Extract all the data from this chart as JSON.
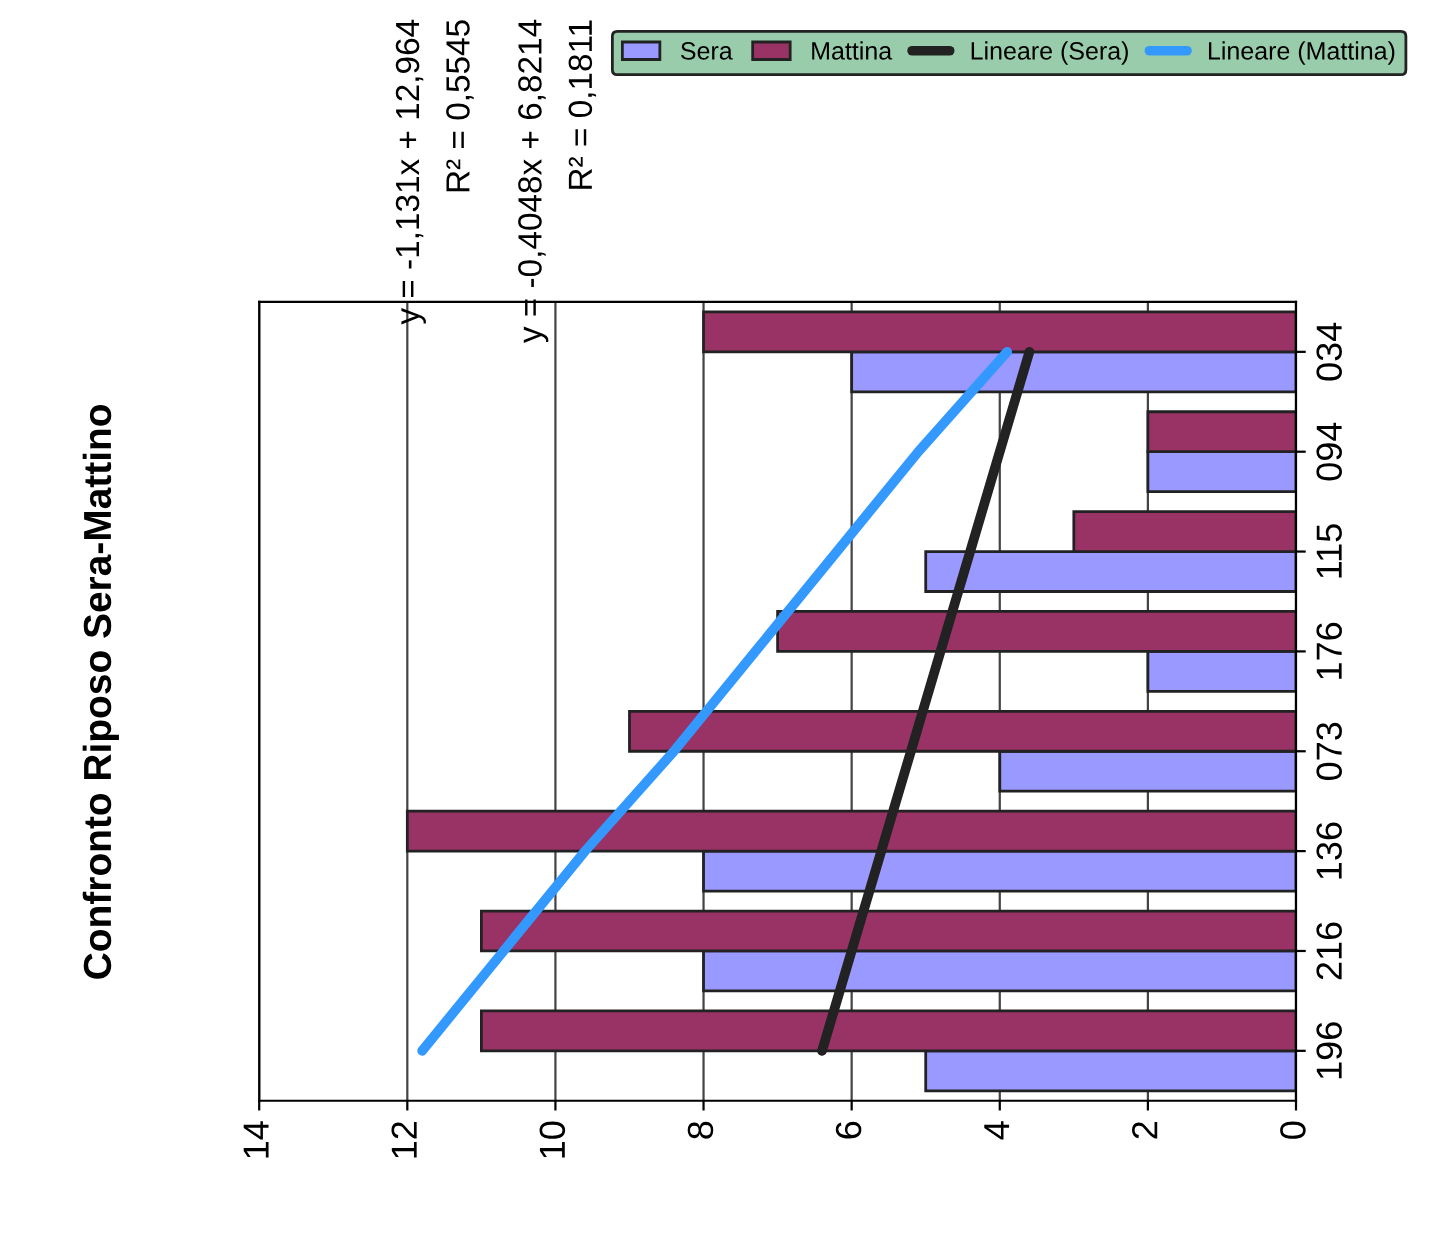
{
  "chart_data": {
    "type": "bar",
    "orientation": "horizontal",
    "title": "Confronto Riposo Sera-Mattino",
    "categories": [
      "034",
      "094",
      "115",
      "176",
      "073",
      "136",
      "216",
      "196"
    ],
    "series": [
      {
        "name": "Sera",
        "color": "#9999ff",
        "values": [
          6,
          2,
          5,
          2,
          4,
          8,
          8,
          5
        ]
      },
      {
        "name": "Mattina",
        "color": "#993366",
        "values": [
          8,
          2,
          3,
          7,
          9,
          12,
          11,
          11
        ]
      },
      {
        "name": "Lineare (Sera)",
        "type": "line",
        "color": "#222222",
        "values": [
          3.6,
          4.0,
          4.4,
          4.8,
          5.2,
          5.6,
          6.0,
          6.4
        ]
      },
      {
        "name": "Lineare (Mattina)",
        "type": "line",
        "color": "#3399ff",
        "values": [
          3.9,
          5.1,
          6.2,
          7.3,
          8.4,
          9.6,
          10.7,
          11.8
        ]
      }
    ],
    "xlim": [
      14,
      0
    ],
    "xticks": [
      0,
      2,
      4,
      6,
      8,
      10,
      12,
      14
    ],
    "grid": "x",
    "legend": "top right",
    "annotations": [
      "y = -1,131x + 12,964",
      "R² = 0,5545",
      "y = -0,4048x + 6,8214",
      "R² = 0,1811"
    ]
  }
}
